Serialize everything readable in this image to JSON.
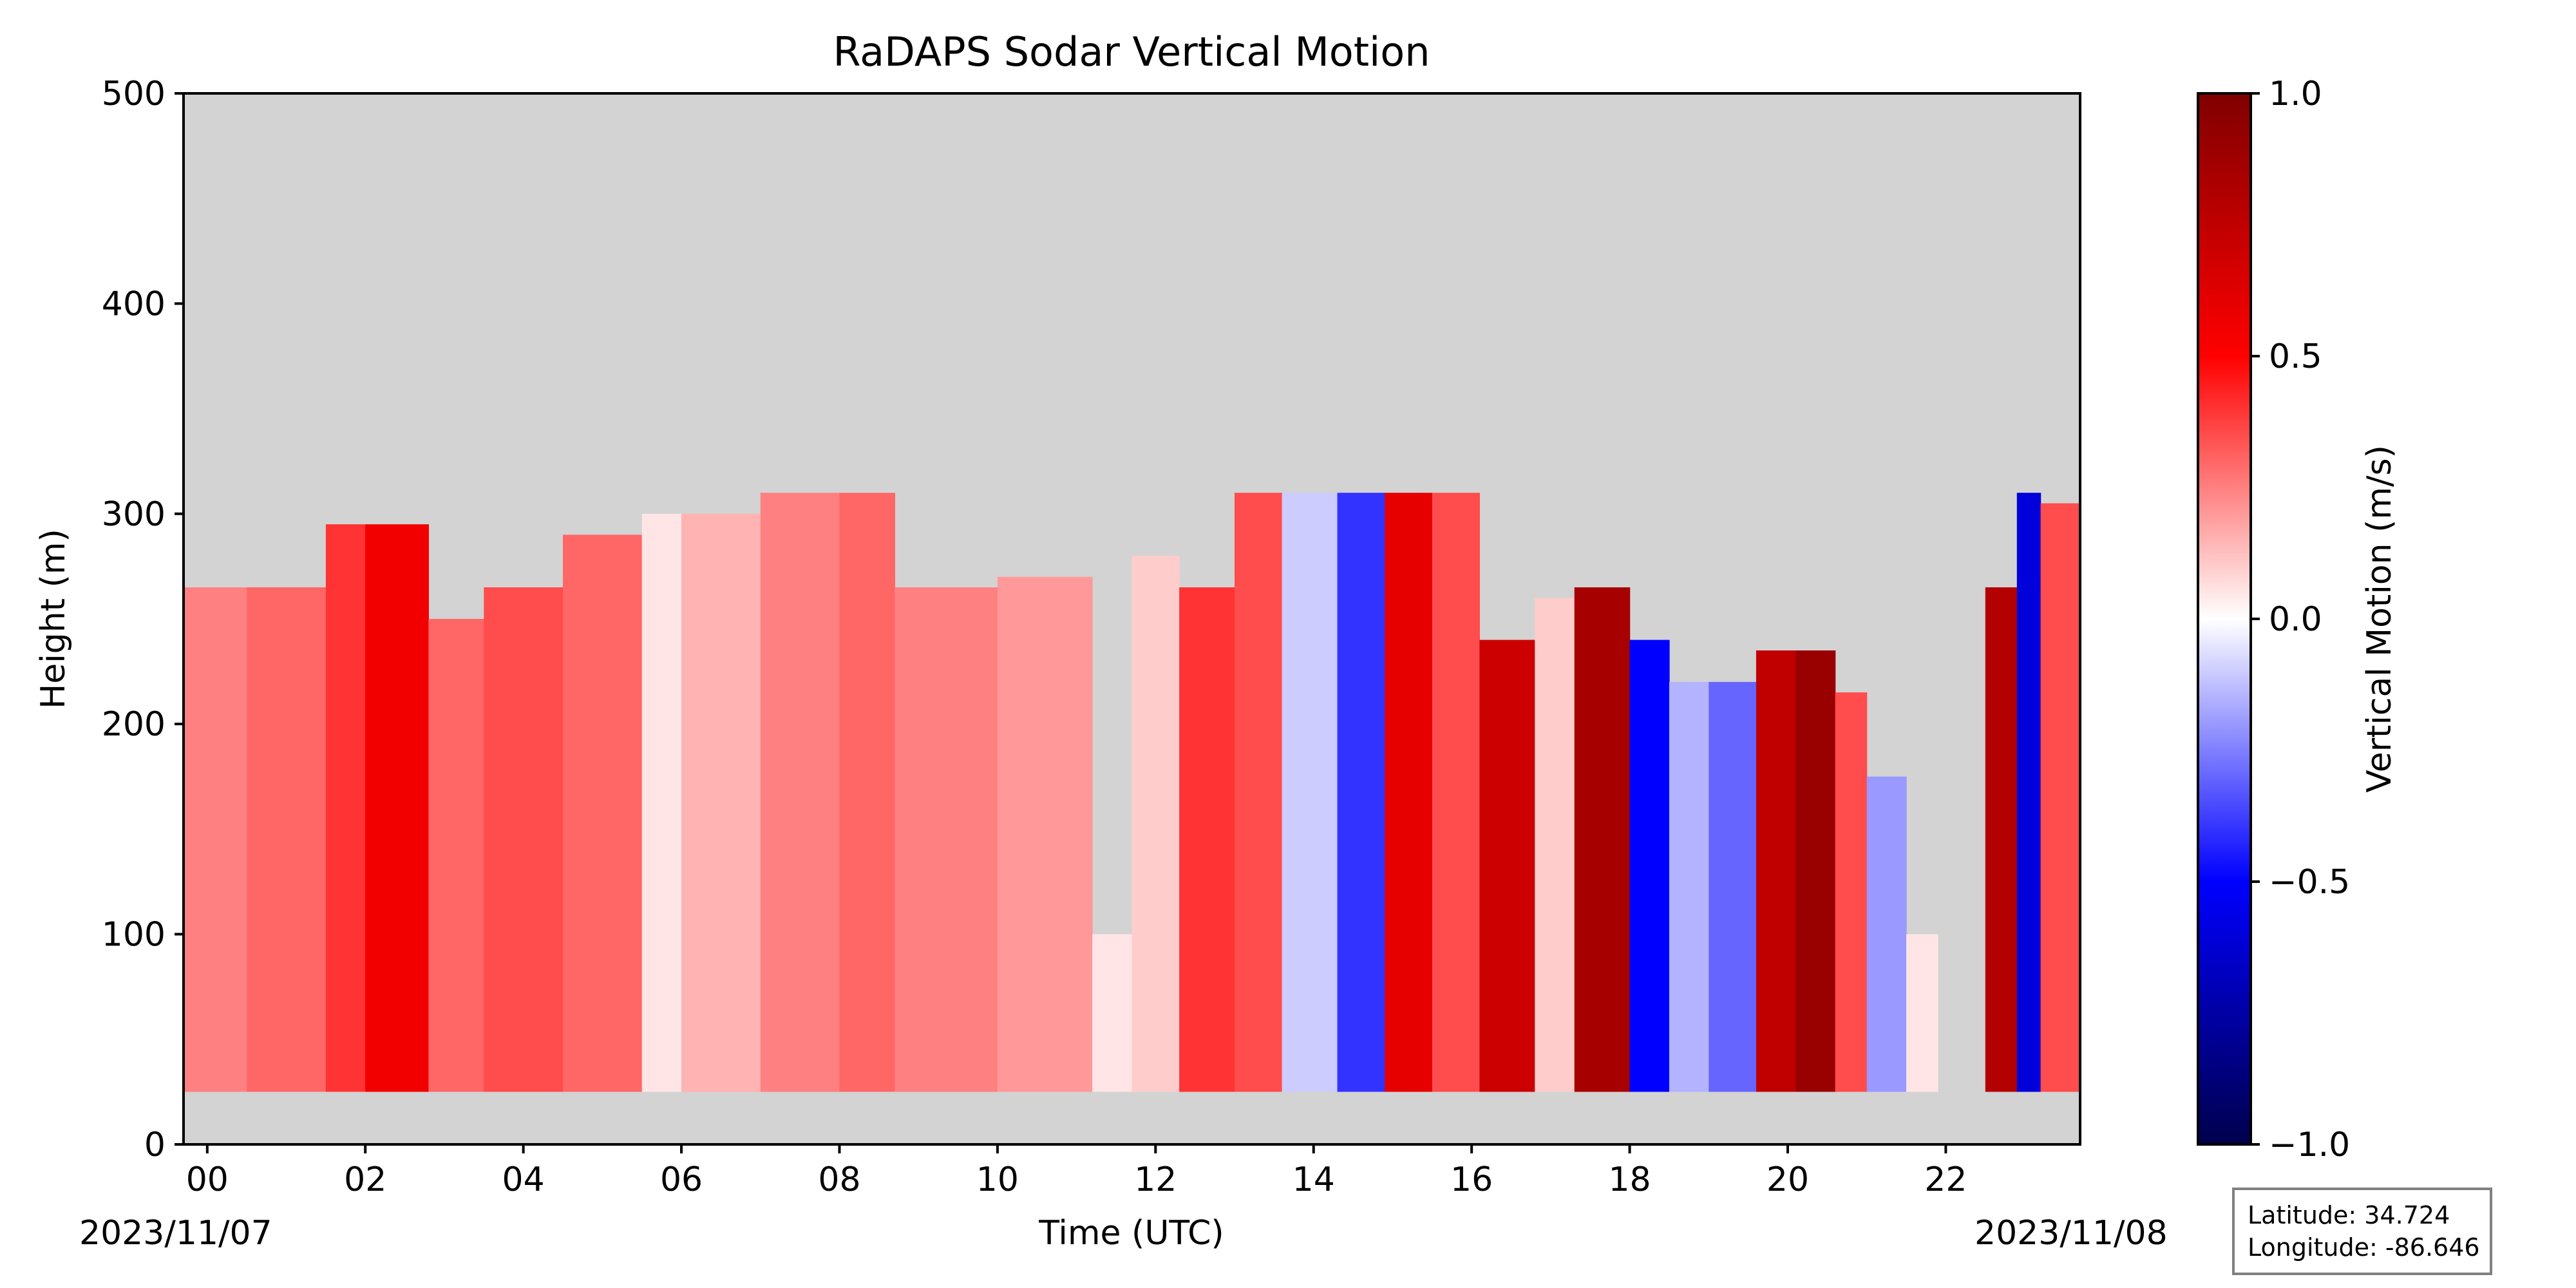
{
  "chart_data": {
    "type": "heatmap",
    "title": "RaDAPS Sodar Vertical Motion",
    "xlabel": "Time (UTC)",
    "ylabel": "Height (m)",
    "xlim": [
      -0.3,
      23.7
    ],
    "ylim": [
      0,
      500
    ],
    "x_ticks": [
      "00",
      "02",
      "04",
      "06",
      "08",
      "10",
      "12",
      "14",
      "16",
      "18",
      "20",
      "22"
    ],
    "x_tick_values": [
      0,
      2,
      4,
      6,
      8,
      10,
      12,
      14,
      16,
      18,
      20,
      22
    ],
    "y_ticks": [
      "0",
      "100",
      "200",
      "300",
      "400",
      "500"
    ],
    "y_tick_values": [
      0,
      100,
      200,
      300,
      400,
      500
    ],
    "start_date_label": "2023/11/07",
    "end_date_label": "2023/11/08",
    "missing_color": "#d3d3d3",
    "colorbar": {
      "label": "Vertical Motion (m/s)",
      "range": [
        -1.0,
        1.0
      ],
      "ticks": [
        "1.0",
        "0.5",
        "0.0",
        "−0.5",
        "−1.0"
      ],
      "tick_values": [
        1.0,
        0.5,
        0.0,
        -0.5,
        -1.0
      ],
      "colormap": "seismic",
      "colormap_stops": [
        "#00004c",
        "#0000ff",
        "#ffffff",
        "#ff0000",
        "#800000"
      ]
    },
    "measurement_bottom_m": 25,
    "segments": [
      {
        "start": -0.3,
        "end": 0.5,
        "top": 265,
        "value": 0.25
      },
      {
        "start": 0.5,
        "end": 1.5,
        "top": 265,
        "value": 0.3
      },
      {
        "start": 1.5,
        "end": 2.0,
        "top": 295,
        "value": 0.4
      },
      {
        "start": 2.0,
        "end": 2.8,
        "top": 295,
        "value": 0.55
      },
      {
        "start": 2.8,
        "end": 3.5,
        "top": 250,
        "value": 0.3
      },
      {
        "start": 3.5,
        "end": 4.5,
        "top": 265,
        "value": 0.35
      },
      {
        "start": 4.5,
        "end": 5.5,
        "top": 290,
        "value": 0.3
      },
      {
        "start": 5.5,
        "end": 6.0,
        "top": 300,
        "value": 0.05
      },
      {
        "start": 6.0,
        "end": 7.0,
        "top": 300,
        "value": 0.15
      },
      {
        "start": 7.0,
        "end": 8.0,
        "top": 310,
        "value": 0.25
      },
      {
        "start": 8.0,
        "end": 8.7,
        "top": 310,
        "value": 0.3
      },
      {
        "start": 8.7,
        "end": 10.0,
        "top": 265,
        "value": 0.25
      },
      {
        "start": 10.0,
        "end": 11.2,
        "top": 270,
        "value": 0.2
      },
      {
        "start": 11.2,
        "end": 11.7,
        "top": 100,
        "value": 0.05
      },
      {
        "start": 11.7,
        "end": 12.3,
        "top": 280,
        "value": 0.1
      },
      {
        "start": 12.3,
        "end": 13.0,
        "top": 265,
        "value": 0.4
      },
      {
        "start": 13.0,
        "end": 13.6,
        "top": 310,
        "value": 0.35
      },
      {
        "start": 13.6,
        "end": 14.3,
        "top": 310,
        "value": -0.1
      },
      {
        "start": 14.3,
        "end": 14.9,
        "top": 310,
        "value": -0.4
      },
      {
        "start": 14.9,
        "end": 15.5,
        "top": 310,
        "value": 0.6
      },
      {
        "start": 15.5,
        "end": 16.1,
        "top": 310,
        "value": 0.35
      },
      {
        "start": 16.1,
        "end": 16.8,
        "top": 240,
        "value": 0.7
      },
      {
        "start": 16.8,
        "end": 17.3,
        "top": 260,
        "value": 0.1
      },
      {
        "start": 17.3,
        "end": 18.0,
        "top": 265,
        "value": 0.85
      },
      {
        "start": 18.0,
        "end": 18.5,
        "top": 240,
        "value": -0.5
      },
      {
        "start": 18.5,
        "end": 19.0,
        "top": 220,
        "value": -0.15
      },
      {
        "start": 19.0,
        "end": 19.6,
        "top": 220,
        "value": -0.3
      },
      {
        "start": 19.6,
        "end": 20.1,
        "top": 235,
        "value": 0.75
      },
      {
        "start": 20.1,
        "end": 20.6,
        "top": 235,
        "value": 0.9
      },
      {
        "start": 20.6,
        "end": 21.0,
        "top": 215,
        "value": 0.35
      },
      {
        "start": 21.0,
        "end": 21.5,
        "top": 175,
        "value": -0.2
      },
      {
        "start": 21.5,
        "end": 21.9,
        "top": 100,
        "value": 0.05
      },
      {
        "start": 22.5,
        "end": 22.9,
        "top": 265,
        "value": 0.8
      },
      {
        "start": 22.9,
        "end": 23.2,
        "top": 310,
        "value": -0.6
      },
      {
        "start": 23.2,
        "end": 23.7,
        "top": 305,
        "value": 0.35
      }
    ]
  },
  "infobox": {
    "latitude": "Latitude: 34.724",
    "longitude": "Longitude: -86.646"
  }
}
